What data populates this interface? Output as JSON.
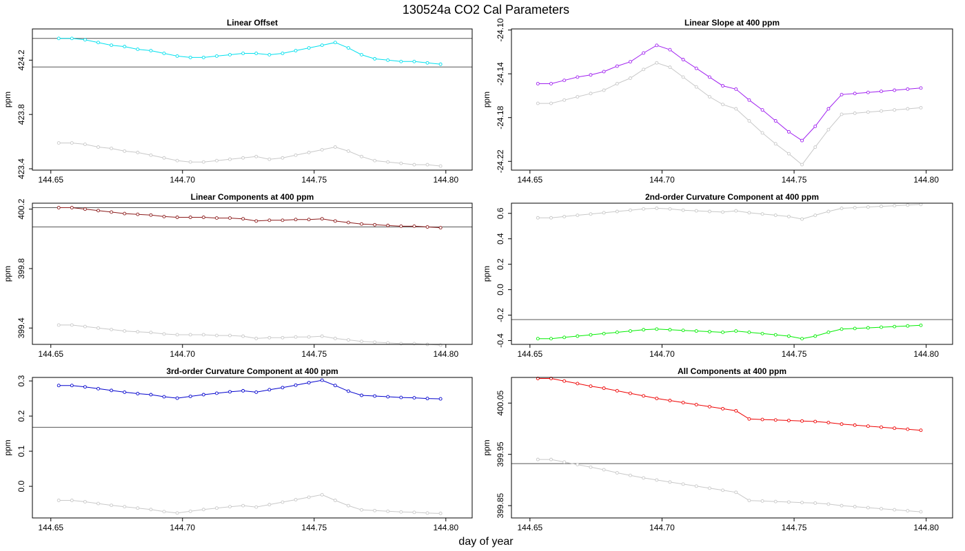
{
  "figure": {
    "title": "130524a   CO2 Cal Parameters",
    "xlabel": "day of year"
  },
  "colors": {
    "reference_series": "#c8c8c8",
    "hline": "#555555",
    "frame": "#000000"
  },
  "chart_data": [
    {
      "type": "line",
      "title": "Linear Offset",
      "ylabel": "ppm",
      "xlim": [
        144.643,
        144.81
      ],
      "ylim": [
        423.39,
        424.43
      ],
      "xticks": [
        144.65,
        144.7,
        144.75,
        144.8
      ],
      "xtick_labels": [
        "144.65",
        "144.70",
        "144.75",
        "144.80"
      ],
      "yticks": [
        423.4,
        423.8,
        424.2
      ],
      "ytick_labels": [
        "423.4",
        "423.8",
        "424.2"
      ],
      "hlines": [
        424.36,
        424.15
      ],
      "x": [
        144.653,
        144.658,
        144.663,
        144.668,
        144.673,
        144.678,
        144.683,
        144.688,
        144.693,
        144.698,
        144.703,
        144.708,
        144.713,
        144.718,
        144.723,
        144.728,
        144.733,
        144.738,
        144.743,
        144.748,
        144.753,
        144.758,
        144.763,
        144.768,
        144.773,
        144.778,
        144.783,
        144.788,
        144.793,
        144.798
      ],
      "series": [
        {
          "color": "#00e0ee",
          "values": [
            424.36,
            424.36,
            424.35,
            424.33,
            424.31,
            424.3,
            424.28,
            424.27,
            424.25,
            424.23,
            424.22,
            424.22,
            424.23,
            424.24,
            424.25,
            424.25,
            424.24,
            424.25,
            424.27,
            424.29,
            424.31,
            424.33,
            424.29,
            424.24,
            424.21,
            424.2,
            424.19,
            424.19,
            424.18,
            424.17
          ]
        },
        {
          "color": "#c8c8c8",
          "values": [
            423.59,
            423.59,
            423.58,
            423.56,
            423.55,
            423.53,
            423.52,
            423.5,
            423.48,
            423.46,
            423.45,
            423.45,
            423.46,
            423.47,
            423.48,
            423.49,
            423.47,
            423.48,
            423.5,
            423.52,
            423.54,
            423.56,
            423.53,
            423.49,
            423.46,
            423.45,
            423.44,
            423.43,
            423.43,
            423.42
          ]
        }
      ]
    },
    {
      "type": "line",
      "title": "Linear Slope at 400 ppm",
      "ylabel": "ppm",
      "xlim": [
        144.643,
        144.81
      ],
      "ylim": [
        -24.228,
        -24.099
      ],
      "xticks": [
        144.65,
        144.7,
        144.75,
        144.8
      ],
      "xtick_labels": [
        "144.65",
        "144.70",
        "144.75",
        "144.80"
      ],
      "yticks": [
        -24.1,
        -24.14,
        -24.18,
        -24.22
      ],
      "ytick_labels": [
        "-24.10",
        "-24.14",
        "-24.18",
        "-24.22"
      ],
      "hlines": [],
      "x": [
        144.653,
        144.658,
        144.663,
        144.668,
        144.673,
        144.678,
        144.683,
        144.688,
        144.693,
        144.698,
        144.703,
        144.708,
        144.713,
        144.718,
        144.723,
        144.728,
        144.733,
        144.738,
        144.743,
        144.748,
        144.753,
        144.758,
        144.763,
        144.768,
        144.773,
        144.778,
        144.783,
        144.788,
        144.793,
        144.798
      ],
      "series": [
        {
          "color": "#a020f0",
          "values": [
            -24.149,
            -24.149,
            -24.146,
            -24.143,
            -24.141,
            -24.138,
            -24.133,
            -24.129,
            -24.121,
            -24.114,
            -24.118,
            -24.127,
            -24.135,
            -24.143,
            -24.151,
            -24.154,
            -24.164,
            -24.173,
            -24.183,
            -24.193,
            -24.201,
            -24.188,
            -24.172,
            -24.159,
            -24.158,
            -24.157,
            -24.156,
            -24.155,
            -24.154,
            -24.153
          ]
        },
        {
          "color": "#c8c8c8",
          "values": [
            -24.167,
            -24.167,
            -24.164,
            -24.161,
            -24.158,
            -24.155,
            -24.149,
            -24.144,
            -24.136,
            -24.13,
            -24.134,
            -24.143,
            -24.152,
            -24.161,
            -24.168,
            -24.172,
            -24.183,
            -24.194,
            -24.204,
            -24.213,
            -24.223,
            -24.207,
            -24.191,
            -24.177,
            -24.176,
            -24.175,
            -24.174,
            -24.173,
            -24.172,
            -24.171
          ]
        }
      ]
    },
    {
      "type": "line",
      "title": "Linear Components at 400 ppm",
      "ylabel": "ppm",
      "xlim": [
        144.643,
        144.81
      ],
      "ylim": [
        399.29,
        400.24
      ],
      "xticks": [
        144.65,
        144.7,
        144.75,
        144.8
      ],
      "xtick_labels": [
        "144.65",
        "144.70",
        "144.75",
        "144.80"
      ],
      "yticks": [
        399.4,
        399.8,
        400.2
      ],
      "ytick_labels": [
        "399.4",
        "399.8",
        "400.2"
      ],
      "hlines": [
        400.21,
        400.08
      ],
      "x": [
        144.653,
        144.658,
        144.663,
        144.668,
        144.673,
        144.678,
        144.683,
        144.688,
        144.693,
        144.698,
        144.703,
        144.708,
        144.713,
        144.718,
        144.723,
        144.728,
        144.733,
        144.738,
        144.743,
        144.748,
        144.753,
        144.758,
        144.763,
        144.768,
        144.773,
        144.778,
        144.783,
        144.788,
        144.793,
        144.798
      ],
      "series": [
        {
          "color": "#8b1a1a",
          "values": [
            400.21,
            400.21,
            400.2,
            400.19,
            400.18,
            400.17,
            400.165,
            400.16,
            400.15,
            400.145,
            400.145,
            400.145,
            400.14,
            400.14,
            400.135,
            400.12,
            400.125,
            400.125,
            400.13,
            400.13,
            400.135,
            400.12,
            400.11,
            400.1,
            400.095,
            400.09,
            400.085,
            400.085,
            400.08,
            400.075
          ]
        },
        {
          "color": "#c8c8c8",
          "values": [
            399.42,
            399.42,
            399.41,
            399.4,
            399.39,
            399.38,
            399.375,
            399.37,
            399.36,
            399.355,
            399.355,
            399.355,
            399.35,
            399.35,
            399.345,
            399.33,
            399.335,
            399.335,
            399.34,
            399.34,
            399.345,
            399.33,
            399.32,
            399.31,
            399.305,
            399.3,
            399.295,
            399.295,
            399.29,
            399.285
          ]
        }
      ]
    },
    {
      "type": "line",
      "title": "2nd-order Curvature Component at 400 ppm",
      "ylabel": "ppm",
      "xlim": [
        144.643,
        144.81
      ],
      "ylim": [
        -0.43,
        0.68
      ],
      "xticks": [
        144.65,
        144.7,
        144.75,
        144.8
      ],
      "xtick_labels": [
        "144.65",
        "144.70",
        "144.75",
        "144.80"
      ],
      "yticks": [
        0.6,
        0.4,
        0.2,
        0.0,
        -0.2,
        -0.4
      ],
      "ytick_labels": [
        "0.6",
        "0.4",
        "0.2",
        "0.0",
        "-0.2",
        "-0.4"
      ],
      "hlines": [
        -0.235
      ],
      "x": [
        144.653,
        144.658,
        144.663,
        144.668,
        144.673,
        144.678,
        144.683,
        144.688,
        144.693,
        144.698,
        144.703,
        144.708,
        144.713,
        144.718,
        144.723,
        144.728,
        144.733,
        144.738,
        144.743,
        144.748,
        144.753,
        144.758,
        144.763,
        144.768,
        144.773,
        144.778,
        144.783,
        144.788,
        144.793,
        144.798
      ],
      "series": [
        {
          "color": "#00ee00",
          "values": [
            -0.385,
            -0.385,
            -0.375,
            -0.365,
            -0.355,
            -0.345,
            -0.335,
            -0.325,
            -0.315,
            -0.31,
            -0.315,
            -0.32,
            -0.325,
            -0.33,
            -0.335,
            -0.325,
            -0.335,
            -0.345,
            -0.355,
            -0.365,
            -0.385,
            -0.365,
            -0.335,
            -0.31,
            -0.305,
            -0.3,
            -0.295,
            -0.29,
            -0.285,
            -0.28
          ]
        },
        {
          "color": "#c8c8c8",
          "values": [
            0.565,
            0.565,
            0.575,
            0.585,
            0.595,
            0.605,
            0.615,
            0.625,
            0.635,
            0.64,
            0.635,
            0.625,
            0.62,
            0.615,
            0.61,
            0.62,
            0.605,
            0.595,
            0.585,
            0.575,
            0.555,
            0.585,
            0.615,
            0.64,
            0.645,
            0.65,
            0.655,
            0.66,
            0.665,
            0.67
          ]
        }
      ]
    },
    {
      "type": "line",
      "title": "3rd-order Curvature Component at 400 ppm",
      "ylabel": "ppm",
      "xlim": [
        144.643,
        144.81
      ],
      "ylim": [
        -0.09,
        0.31
      ],
      "xticks": [
        144.65,
        144.7,
        144.75,
        144.8
      ],
      "xtick_labels": [
        "144.65",
        "144.70",
        "144.75",
        "144.80"
      ],
      "yticks": [
        0.0,
        0.1,
        0.2,
        0.3
      ],
      "ytick_labels": [
        "0.0",
        "0.1",
        "0.2",
        "0.3"
      ],
      "hlines": [
        0.168
      ],
      "x": [
        144.653,
        144.658,
        144.663,
        144.668,
        144.673,
        144.678,
        144.683,
        144.688,
        144.693,
        144.698,
        144.703,
        144.708,
        144.713,
        144.718,
        144.723,
        144.728,
        144.733,
        144.738,
        144.743,
        144.748,
        144.753,
        144.758,
        144.763,
        144.768,
        144.773,
        144.778,
        144.783,
        144.788,
        144.793,
        144.798
      ],
      "series": [
        {
          "color": "#0000cd",
          "values": [
            0.287,
            0.287,
            0.283,
            0.278,
            0.273,
            0.268,
            0.264,
            0.261,
            0.255,
            0.251,
            0.256,
            0.261,
            0.265,
            0.269,
            0.272,
            0.268,
            0.275,
            0.281,
            0.288,
            0.295,
            0.302,
            0.287,
            0.271,
            0.259,
            0.257,
            0.255,
            0.253,
            0.252,
            0.25,
            0.249
          ]
        },
        {
          "color": "#c8c8c8",
          "values": [
            -0.04,
            -0.04,
            -0.044,
            -0.049,
            -0.054,
            -0.058,
            -0.062,
            -0.066,
            -0.072,
            -0.076,
            -0.071,
            -0.066,
            -0.062,
            -0.058,
            -0.055,
            -0.059,
            -0.052,
            -0.045,
            -0.038,
            -0.031,
            -0.024,
            -0.04,
            -0.055,
            -0.067,
            -0.069,
            -0.071,
            -0.073,
            -0.074,
            -0.076,
            -0.077
          ]
        }
      ]
    },
    {
      "type": "line",
      "title": "All Components at 400 ppm",
      "ylabel": "ppm",
      "xlim": [
        144.643,
        144.81
      ],
      "ylim": [
        399.826,
        400.1
      ],
      "xticks": [
        144.65,
        144.7,
        144.75,
        144.8
      ],
      "xtick_labels": [
        "144.65",
        "144.70",
        "144.75",
        "144.80"
      ],
      "yticks": [
        399.85,
        399.95,
        400.05
      ],
      "ytick_labels": [
        "399.85",
        "399.95",
        "400.05"
      ],
      "hlines": [
        399.932
      ],
      "x": [
        144.653,
        144.658,
        144.663,
        144.668,
        144.673,
        144.678,
        144.683,
        144.688,
        144.693,
        144.698,
        144.703,
        144.708,
        144.713,
        144.718,
        144.723,
        144.728,
        144.733,
        144.738,
        144.743,
        144.748,
        144.753,
        144.758,
        144.763,
        144.768,
        144.773,
        144.778,
        144.783,
        144.788,
        144.793,
        144.798
      ],
      "series": [
        {
          "color": "#ee0000",
          "values": [
            400.098,
            400.098,
            400.093,
            400.088,
            400.083,
            400.079,
            400.074,
            400.069,
            400.064,
            400.059,
            400.055,
            400.051,
            400.047,
            400.043,
            400.039,
            400.035,
            400.019,
            400.018,
            400.017,
            400.016,
            400.015,
            400.014,
            400.012,
            400.009,
            400.007,
            400.005,
            400.003,
            400.001,
            399.999,
            399.997
          ]
        },
        {
          "color": "#c8c8c8",
          "values": [
            399.94,
            399.94,
            399.935,
            399.93,
            399.925,
            399.92,
            399.914,
            399.909,
            399.904,
            399.9,
            399.896,
            399.892,
            399.888,
            399.884,
            399.88,
            399.876,
            399.86,
            399.859,
            399.858,
            399.857,
            399.856,
            399.855,
            399.853,
            399.85,
            399.848,
            399.846,
            399.844,
            399.842,
            399.84,
            399.838
          ]
        }
      ]
    }
  ]
}
